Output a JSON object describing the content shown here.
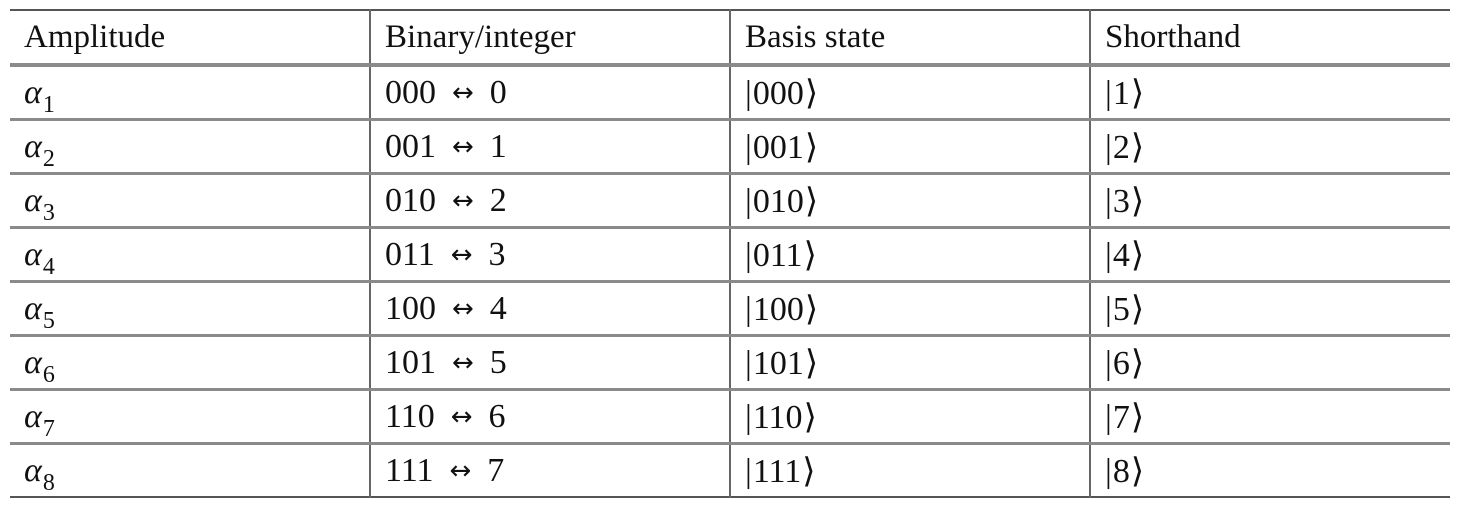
{
  "headers": [
    "Amplitude",
    "Binary/integer",
    "Basis state",
    "Shorthand"
  ],
  "symbols": {
    "alpha": "α",
    "arrow": "↔",
    "ket_bar": "|",
    "ket_angle": "⟩"
  },
  "rows": [
    {
      "alpha_sub": "1",
      "binary": "000",
      "integer": "0",
      "basis": "000",
      "shorthand": "1"
    },
    {
      "alpha_sub": "2",
      "binary": "001",
      "integer": "1",
      "basis": "001",
      "shorthand": "2"
    },
    {
      "alpha_sub": "3",
      "binary": "010",
      "integer": "2",
      "basis": "010",
      "shorthand": "3"
    },
    {
      "alpha_sub": "4",
      "binary": "011",
      "integer": "3",
      "basis": "011",
      "shorthand": "4"
    },
    {
      "alpha_sub": "5",
      "binary": "100",
      "integer": "4",
      "basis": "100",
      "shorthand": "5"
    },
    {
      "alpha_sub": "6",
      "binary": "101",
      "integer": "5",
      "basis": "101",
      "shorthand": "6"
    },
    {
      "alpha_sub": "7",
      "binary": "110",
      "integer": "6",
      "basis": "110",
      "shorthand": "7"
    },
    {
      "alpha_sub": "8",
      "binary": "111",
      "integer": "7",
      "basis": "111",
      "shorthand": "8"
    }
  ]
}
